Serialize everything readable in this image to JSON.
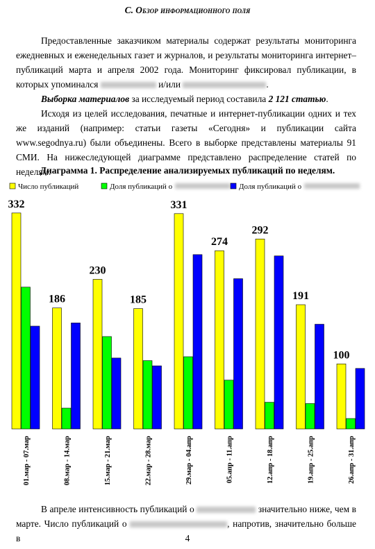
{
  "header": {
    "title": "С. Обзор информационного поля"
  },
  "body": {
    "p1": [
      "Предоставленные заказчиком материалы содержат результаты мониторинга ежедневных и еженедельных газет и журналов, и результаты мониторинга интернет–публикаций марта и апреля 2002 года. Мониторинг фиксировал публикации, в которых упоминался",
      "и/или",
      "."
    ],
    "p2": [
      "Выборка материалов",
      "за исследуемый период составила",
      "2 121 статью",
      "."
    ],
    "p3": "Исходя из целей исследования, печатные и интернет-публикации одних и тех же изданий (например: статьи газеты «Сегодня» и публикации сайта www.segodnya.ru) были объединены. Всего в выборке представлены материалы 91 СМИ. На нижеследующей диаграмме представлено распределение статей по неделям.",
    "p4": [
      "В апреле интенсивность публикаций о",
      "значительно ниже, чем в марте. Число публикаций о",
      ", напротив, значительно больше в"
    ]
  },
  "chart_data": {
    "type": "bar",
    "title": "Диаграмма 1. Распределение анализируемых публикаций по неделям.",
    "categories": [
      "01.мар - 07.мар",
      "08.мар - 14.мар",
      "15.мар - 21.мар",
      "22.мар - 28.мар",
      "29.мар - 04.апр",
      "05.апр - 11.апр",
      "12.апр - 18.апр",
      "19.апр - 25.апр",
      "26.апр - 31.апр"
    ],
    "series": [
      {
        "name": "Число публикаций",
        "color": "#ffff00",
        "values": [
          332,
          186,
          230,
          185,
          331,
          274,
          292,
          191,
          100
        ],
        "labels": true
      },
      {
        "name": "Доля публикаций о",
        "color": "#00ff00",
        "values": [
          218,
          32,
          142,
          105,
          111,
          75,
          41,
          39,
          16
        ]
      },
      {
        "name": "Доля публикаций о",
        "color": "#0000ff",
        "values": [
          158,
          163,
          109,
          97,
          268,
          231,
          266,
          161,
          93
        ]
      }
    ],
    "ylim": [
      0,
      350
    ]
  },
  "footer": {
    "page_number": "4"
  }
}
